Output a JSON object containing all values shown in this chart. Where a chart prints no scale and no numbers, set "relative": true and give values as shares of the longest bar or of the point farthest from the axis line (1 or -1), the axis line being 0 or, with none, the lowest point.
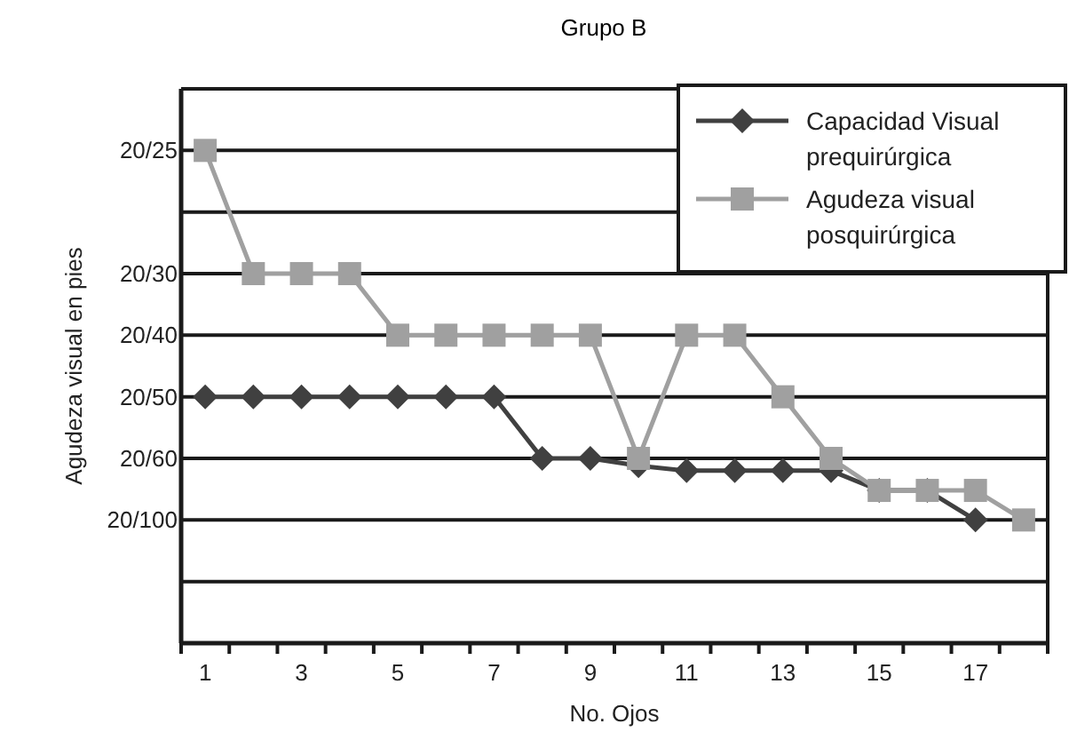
{
  "chart_data": {
    "type": "line",
    "title": "Grupo B",
    "xlabel": "No. Ojos",
    "ylabel": "Agudeza visual en pies",
    "x": [
      1,
      2,
      3,
      4,
      5,
      6,
      7,
      8,
      9,
      10,
      11,
      12,
      13,
      14,
      15,
      16,
      17,
      18
    ],
    "xlim": [
      0.5,
      18.5
    ],
    "xticks": [
      1,
      3,
      5,
      7,
      9,
      11,
      13,
      15,
      17
    ],
    "relative": true,
    "series": [
      {
        "name": "Capacidad Visual prequirúrgica",
        "color": "#404040",
        "marker": "diamond",
        "values": [
          0.5,
          0.5,
          0.5,
          0.5,
          0.5,
          0.5,
          0.5,
          0.375,
          0.375,
          0.36,
          0.35,
          0.35,
          0.35,
          0.35,
          0.31,
          0.31,
          0.25,
          null
        ]
      },
      {
        "name": "Agudeza visual posquirúrgica",
        "color": "#a0a0a0",
        "marker": "square",
        "values": [
          1,
          0.75,
          0.75,
          0.75,
          0.625,
          0.625,
          0.625,
          0.625,
          0.625,
          0.375,
          0.625,
          0.625,
          0.5,
          0.375,
          0.31,
          0.31,
          0.31,
          0.25
        ]
      }
    ],
    "ref_lines": [
      {
        "axis": "y",
        "value": 0.125,
        "label": null
      },
      {
        "axis": "y",
        "value": 0.25,
        "label": null
      },
      {
        "axis": "y",
        "value": 0.375,
        "label": null
      },
      {
        "axis": "y",
        "value": 0.5,
        "label": null
      },
      {
        "axis": "y",
        "value": 0.625,
        "label": null
      },
      {
        "axis": "y",
        "value": 0.75,
        "label": null
      },
      {
        "axis": "y",
        "value": 0.875,
        "label": null
      },
      {
        "axis": "y",
        "value": 1,
        "label": null
      }
    ],
    "annotations": [
      "20/100",
      "20/60",
      "20/50",
      "20/40",
      "20/30",
      "20/25"
    ],
    "legend": "top right",
    "line_style": "solid"
  }
}
